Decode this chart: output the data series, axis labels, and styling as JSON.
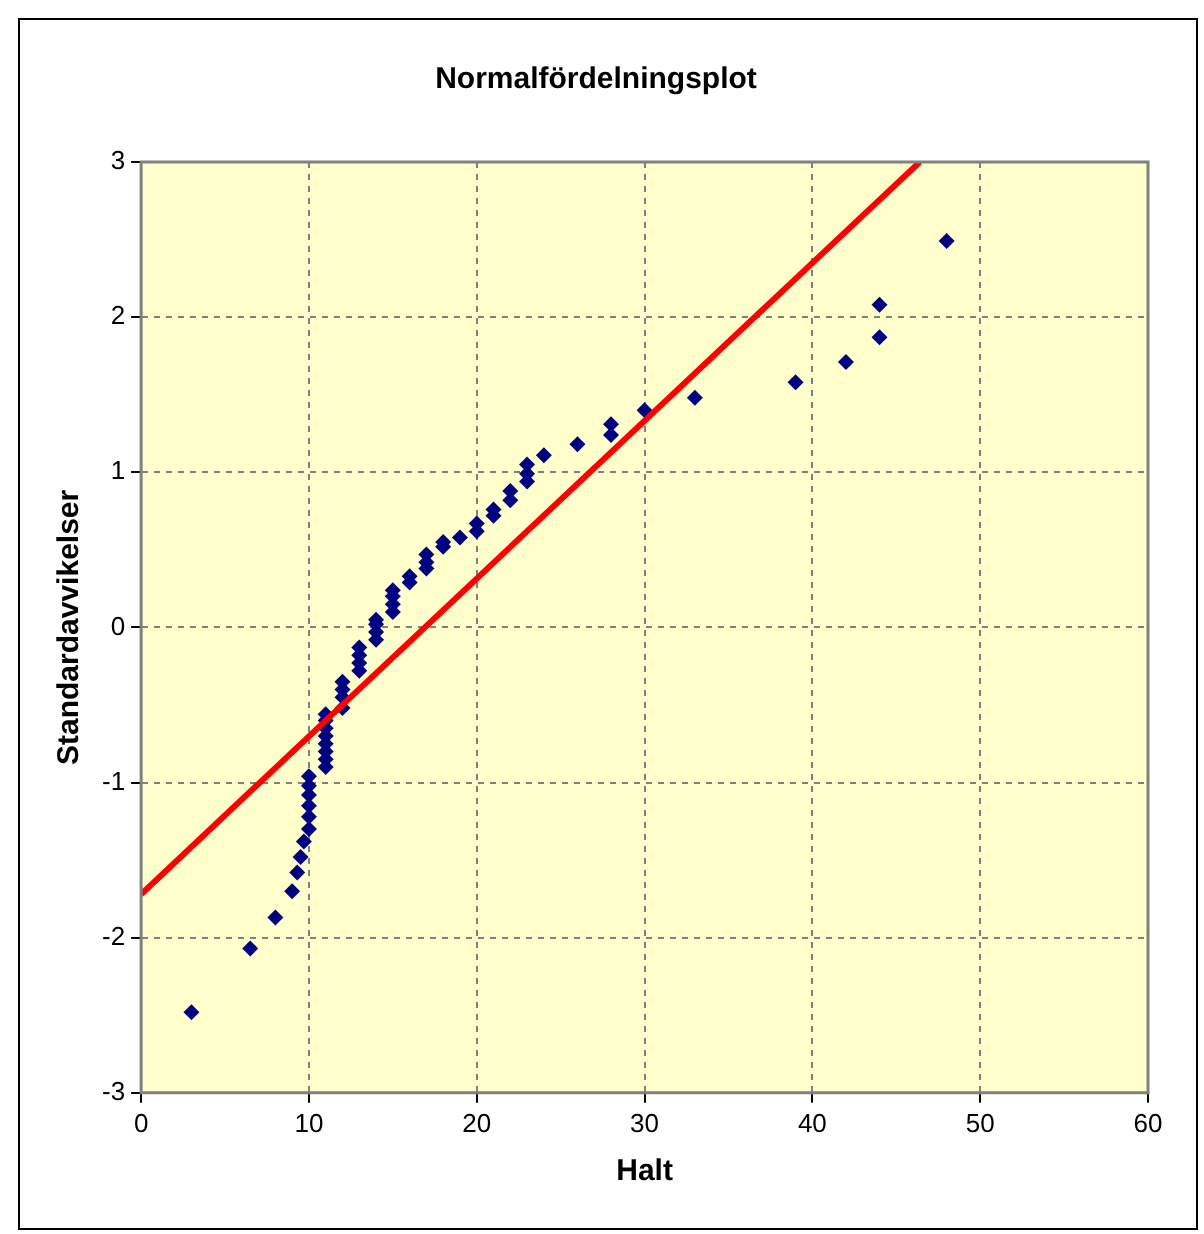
{
  "chart_data": {
    "type": "scatter",
    "title": "Normalfördelningsplot",
    "xlabel": "Halt",
    "ylabel": "Standardavvikelser",
    "xlim": [
      0,
      60
    ],
    "xticks": [
      0,
      10,
      20,
      30,
      40,
      50,
      60
    ],
    "ylim": [
      -3,
      3
    ],
    "yticks": [
      -3,
      -2,
      -1,
      0,
      1,
      2,
      3
    ],
    "grid": true,
    "legend": false,
    "marker": "diamond",
    "series": [
      {
        "color": "#000080",
        "x": [
          3,
          6.5,
          8,
          9,
          9.3,
          9.5,
          9.7,
          10,
          10,
          10,
          10,
          10,
          10,
          11,
          11,
          11,
          11,
          11,
          11,
          11,
          11,
          12,
          12,
          12,
          12,
          13,
          13,
          13,
          13,
          14,
          14,
          14,
          14,
          15,
          15,
          15,
          15,
          16,
          16,
          17,
          17,
          17,
          18,
          18,
          19,
          20,
          20,
          21,
          21,
          22,
          22,
          23,
          23,
          23,
          24,
          26,
          28,
          28,
          30,
          33,
          39,
          42,
          44,
          44,
          48
        ],
        "values": [
          -2.48,
          -2.07,
          -1.87,
          -1.7,
          -1.58,
          -1.48,
          -1.38,
          -1.3,
          -1.22,
          -1.15,
          -1.08,
          -1.02,
          -0.96,
          -0.9,
          -0.85,
          -0.8,
          -0.75,
          -0.7,
          -0.65,
          -0.6,
          -0.56,
          -0.52,
          -0.45,
          -0.4,
          -0.35,
          -0.28,
          -0.23,
          -0.18,
          -0.13,
          -0.08,
          -0.03,
          0.02,
          0.05,
          0.1,
          0.15,
          0.2,
          0.24,
          0.29,
          0.33,
          0.38,
          0.42,
          0.47,
          0.52,
          0.55,
          0.58,
          0.62,
          0.67,
          0.72,
          0.76,
          0.82,
          0.88,
          0.94,
          0.99,
          1.05,
          1.11,
          1.18,
          1.24,
          1.31,
          1.4,
          1.48,
          1.58,
          1.71,
          1.87,
          2.08,
          2.49
        ]
      },
      {
        "type": "line",
        "color": "#ff0000",
        "x": [
          0,
          46.4
        ],
        "values": [
          -1.72,
          3
        ],
        "marker": "none",
        "line_style": "solid"
      }
    ]
  }
}
